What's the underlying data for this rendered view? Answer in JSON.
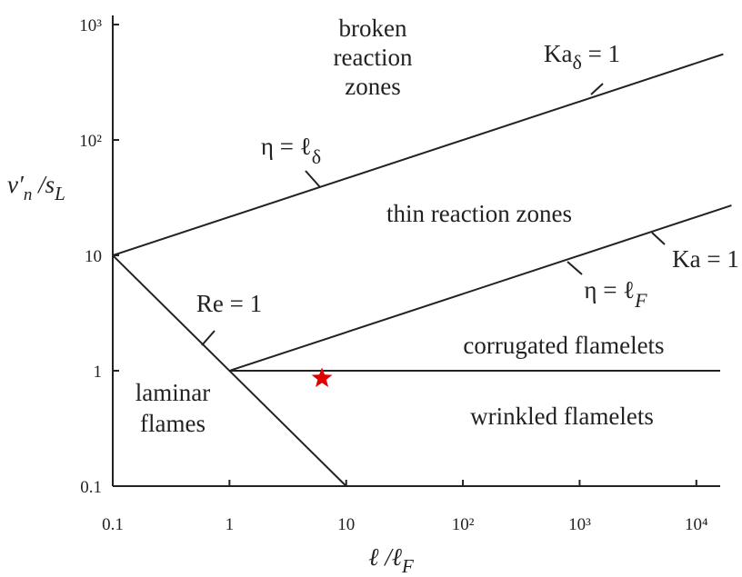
{
  "chart_data": {
    "type": "line",
    "log_x": true,
    "log_y": true,
    "xlim": [
      0.1,
      16000
    ],
    "ylim": [
      0.1,
      1200
    ],
    "xticks": [
      0.1,
      1,
      10,
      {
        "value": 100,
        "label": "10²"
      },
      {
        "value": 1000,
        "label": "10³"
      },
      {
        "value": 10000,
        "label": "10⁴"
      }
    ],
    "yticks": [
      0.1,
      1,
      10,
      {
        "value": 100,
        "label": "10²"
      },
      {
        "value": 1000,
        "label": "10³"
      }
    ],
    "x_label": [
      "ℓ /ℓ",
      "F"
    ],
    "y_label": [
      "v′",
      "n",
      " /s",
      "L"
    ],
    "series": [
      {
        "color": "#222222",
        "x": [
          0.1,
          17000
        ],
        "values": [
          10,
          554
        ]
      },
      {
        "color": "#222222",
        "x": [
          1,
          20000
        ],
        "values": [
          1,
          27.1
        ]
      },
      {
        "color": "#222222",
        "x": [
          0.1,
          10
        ],
        "values": [
          10,
          0.1
        ]
      },
      {
        "color": "#222222",
        "x": [
          1,
          16000
        ],
        "values": [
          1,
          1
        ]
      }
    ],
    "points": {
      "type": "scatter",
      "color": "#e00000",
      "x": [
        6.2
      ],
      "values": [
        0.86
      ]
    },
    "annotations": [
      [
        "broken"
      ],
      [
        "reaction"
      ],
      [
        "zones"
      ],
      [
        "Ka",
        "δ",
        " = 1"
      ],
      [
        "η = ℓ",
        "δ"
      ],
      [
        "thin reaction zones"
      ],
      [
        "Ka = 1"
      ],
      [
        "η = ℓ",
        "F"
      ],
      [
        "Re = 1"
      ],
      [
        "corrugated flamelets"
      ],
      [
        "wrinkled flamelets"
      ],
      [
        "laminar"
      ],
      [
        "flames"
      ]
    ]
  }
}
